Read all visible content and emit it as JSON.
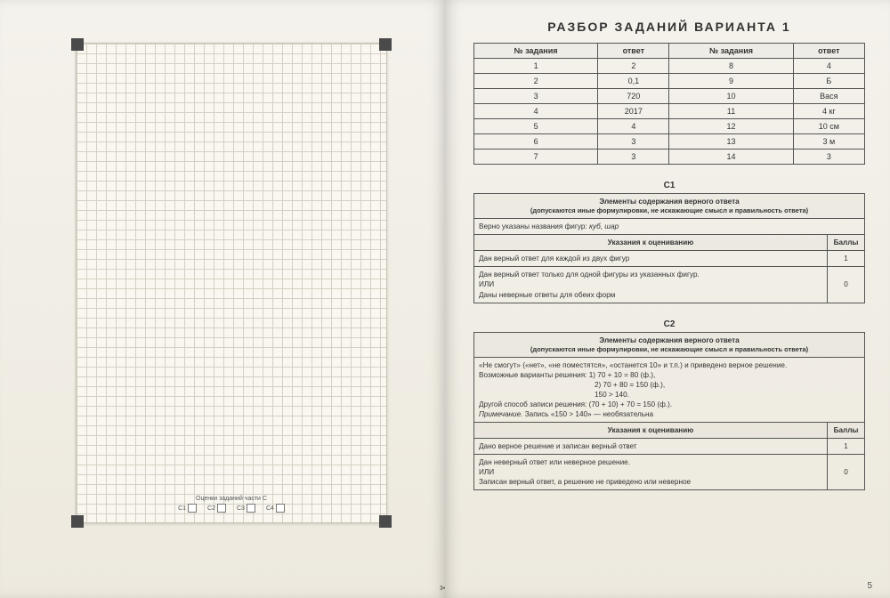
{
  "title": "РАЗБОР ЗАДАНИЙ ВАРИАНТА 1",
  "answers": {
    "headers": [
      "№ задания",
      "ответ",
      "№ задания",
      "ответ"
    ],
    "rows": [
      [
        "1",
        "2",
        "8",
        "4"
      ],
      [
        "2",
        "0,1",
        "9",
        "Б"
      ],
      [
        "3",
        "720",
        "10",
        "Вася"
      ],
      [
        "4",
        "2017",
        "11",
        "4 кг"
      ],
      [
        "5",
        "4",
        "12",
        "10 см"
      ],
      [
        "6",
        "3",
        "13",
        "3 м"
      ],
      [
        "7",
        "3",
        "14",
        "3"
      ]
    ]
  },
  "c1": {
    "label": "С1",
    "elements_header": "Элементы содержания верного ответа",
    "elements_sub": "(допускаются иные формулировки, не искажающие смысл и правильность ответа)",
    "elements_body": "Верно указаны названия фигур: куб, шар",
    "grade_header": "Указания к оцениванию",
    "score_header": "Баллы",
    "grade_rows": [
      {
        "text": "Дан верный ответ для каждой из двух фигур",
        "score": "1"
      },
      {
        "text": "Дан верный ответ только для одной фигуры из указанных фигур.\nИЛИ\nДаны неверные ответы для обеих форм",
        "score": "0"
      }
    ]
  },
  "c2": {
    "label": "С2",
    "elements_header": "Элементы содержания верного ответа",
    "elements_sub": "(допускаются иные формулировки, не искажающие смысл и правильность ответа)",
    "body_line1": "«Не смогут» («нет», «не поместятся», «останется 10» и т.п.) и приведено верное решение.",
    "body_line2": "Возможные варианты решения:  1) 70 + 10 = 80 (ф.),",
    "body_line3": "2) 70 + 80 = 150 (ф.),",
    "body_line4": "150 > 140.",
    "body_line5": "Другой способ записи решения: (70 + 10) + 70 = 150 (ф.).",
    "body_line6": "Примечание. Запись «150 > 140» — необязательна",
    "grade_header": "Указания к оцениванию",
    "score_header": "Баллы",
    "grade_rows": [
      {
        "text": "Дано верное решение и записан верный ответ",
        "score": "1"
      },
      {
        "text": "Дан неверный ответ или неверное решение.\nИЛИ\nЗаписан верный ответ, а решение не приведено или неверное",
        "score": "0"
      }
    ]
  },
  "left": {
    "strip_title": "Оценки заданий части С",
    "labels": [
      "С1",
      "С2",
      "С3",
      "С4"
    ]
  },
  "page_number": "5",
  "colors": {
    "border": "#555555",
    "bg": "#ede9de",
    "text": "#333333"
  }
}
